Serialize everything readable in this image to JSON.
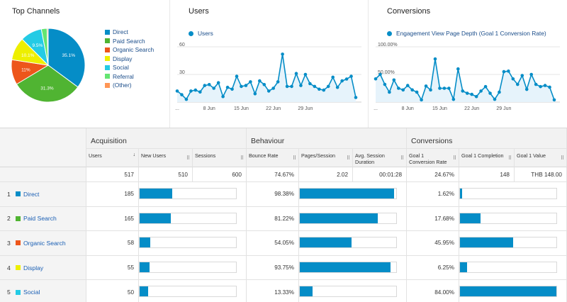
{
  "top_channels": {
    "title": "Top Channels",
    "chart_data": {
      "type": "pie",
      "labels": [
        "Direct",
        "Paid Search",
        "Organic Search",
        "Display",
        "Social",
        "Referral",
        "(Other)"
      ],
      "values": [
        35.1,
        31.3,
        11.0,
        10.1,
        9.5,
        2.5,
        0.5
      ],
      "slice_labels": [
        "35.1%",
        "31.3%",
        "11%",
        "10.1%",
        "9.5%",
        "",
        ""
      ],
      "colors": [
        "#058dc7",
        "#50b432",
        "#ed561b",
        "#edef00",
        "#24cbe5",
        "#64e572",
        "#ff9655"
      ]
    }
  },
  "users_panel": {
    "title": "Users",
    "series_label": "Users",
    "chart_data": {
      "type": "line",
      "series": [
        {
          "name": "Users",
          "values": [
            12,
            8,
            3,
            12,
            13,
            11,
            18,
            19,
            15,
            21,
            6,
            16,
            14,
            28,
            17,
            18,
            22,
            9,
            23,
            19,
            12,
            15,
            22,
            52,
            17,
            17,
            31,
            18,
            30,
            20,
            17,
            14,
            13,
            17,
            27,
            16,
            23,
            25,
            28,
            5
          ]
        }
      ],
      "y_ticks": [
        "60",
        "30"
      ],
      "y_tick_values": [
        60,
        30
      ],
      "ylim": [
        0,
        60
      ],
      "x_tick_labels": [
        "...",
        "8 Jun",
        "15 Jun",
        "22 Jun",
        "29 Jun"
      ],
      "x_tick_index": [
        0,
        7,
        14,
        21,
        28
      ]
    }
  },
  "conversions_panel": {
    "title": "Conversions",
    "series_label": "Engagement View Page Depth (Goal 1 Conversion Rate)",
    "chart_data": {
      "type": "line",
      "series": [
        {
          "name": "Engagement View Page Depth (Goal 1 Conversion Rate)",
          "values": [
            42,
            50,
            32,
            18,
            40,
            25,
            22,
            30,
            22,
            18,
            4,
            29,
            22,
            78,
            25,
            25,
            25,
            5,
            60,
            20,
            16,
            14,
            10,
            20,
            28,
            16,
            5,
            18,
            55,
            56,
            42,
            32,
            48,
            23,
            50,
            32,
            28,
            30,
            27,
            4
          ]
        }
      ],
      "y_ticks": [
        "100.00%",
        "50.00%"
      ],
      "y_tick_values": [
        100,
        50
      ],
      "ylim": [
        0,
        100
      ],
      "x_tick_labels": [
        "...",
        "8 Jun",
        "15 Jun",
        "22 Jun",
        "29 Jun"
      ],
      "x_tick_index": [
        0,
        7,
        14,
        21,
        28
      ]
    }
  },
  "table": {
    "groups": {
      "acquisition": "Acquisition",
      "behaviour": "Behaviour",
      "conversions": "Conversions"
    },
    "columns": {
      "users": "Users",
      "new_users": "New Users",
      "sessions": "Sessions",
      "bounce_rate": "Bounce Rate",
      "pages_session": "Pages/Session",
      "avg_session_duration": "Avg. Session Duration",
      "goal1_conv_rate": "Goal 1 Conversion Rate",
      "goal1_completion": "Goal 1 Completion",
      "goal1_value": "Goal 1 Value"
    },
    "totals": {
      "users": "517",
      "new_users": "510",
      "sessions": "600",
      "bounce_rate": "74.67%",
      "pages_session": "2.02",
      "avg_session_duration": "00:01:28",
      "goal1_conv_rate": "24.67%",
      "goal1_completion": "148",
      "goal1_value": "THB 148.00"
    },
    "rows": [
      {
        "index": "1",
        "channel": "Direct",
        "color": "#058dc7",
        "users": "185",
        "new_users_share": 0.34,
        "bounce_rate": "98.38%",
        "pages_share": 0.98,
        "conv_rate": "1.62%",
        "completion_share": 0.02
      },
      {
        "index": "2",
        "channel": "Paid Search",
        "color": "#50b432",
        "users": "165",
        "new_users_share": 0.32,
        "bounce_rate": "81.22%",
        "pages_share": 0.81,
        "conv_rate": "17.68%",
        "completion_share": 0.21
      },
      {
        "index": "3",
        "channel": "Organic Search",
        "color": "#ed561b",
        "users": "58",
        "new_users_share": 0.11,
        "bounce_rate": "54.05%",
        "pages_share": 0.54,
        "conv_rate": "45.95%",
        "completion_share": 0.55
      },
      {
        "index": "4",
        "channel": "Display",
        "color": "#edef00",
        "users": "55",
        "new_users_share": 0.1,
        "bounce_rate": "93.75%",
        "pages_share": 0.94,
        "conv_rate": "6.25%",
        "completion_share": 0.07
      },
      {
        "index": "5",
        "channel": "Social",
        "color": "#24cbe5",
        "users": "50",
        "new_users_share": 0.09,
        "bounce_rate": "13.33%",
        "pages_share": 0.13,
        "conv_rate": "84.00%",
        "completion_share": 1.0
      }
    ]
  }
}
